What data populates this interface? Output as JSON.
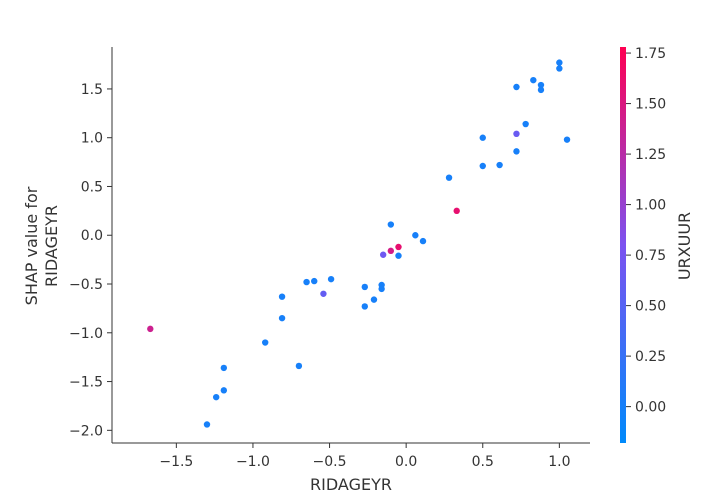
{
  "chart_data": {
    "type": "scatter",
    "xlabel": "RIDAGEYR",
    "ylabel_line1": "SHAP value for",
    "ylabel_line2": "RIDAGEYR",
    "xlim": [
      -1.92,
      1.2
    ],
    "ylim": [
      -2.13,
      1.93
    ],
    "x_ticks": [
      -1.5,
      -1.0,
      -0.5,
      0.0,
      0.5,
      1.0
    ],
    "x_tick_labels": [
      "−1.5",
      "−1.0",
      "−0.5",
      "0.0",
      "0.5",
      "1.0"
    ],
    "y_ticks": [
      -2.0,
      -1.5,
      -1.0,
      -0.5,
      0.0,
      0.5,
      1.0,
      1.5
    ],
    "y_tick_labels": [
      "−2.0",
      "−1.5",
      "−1.0",
      "−0.5",
      "0.0",
      "0.5",
      "1.0",
      "1.5"
    ],
    "grid": false,
    "colorbar": {
      "label": "URXUUR",
      "range": [
        -0.18,
        1.78
      ],
      "ticks": [
        0.0,
        0.25,
        0.5,
        0.75,
        1.0,
        1.25,
        1.5,
        1.75
      ],
      "tick_labels": [
        "0.00",
        "0.25",
        "0.50",
        "0.75",
        "1.00",
        "1.25",
        "1.50",
        "1.75"
      ],
      "colors": [
        "#008afb",
        "#7c52f0",
        "#ff0052"
      ]
    },
    "points": [
      {
        "x": 1.0,
        "y": 1.77,
        "c": 0.0
      },
      {
        "x": 1.0,
        "y": 1.71,
        "c": 0.0
      },
      {
        "x": 0.83,
        "y": 1.59,
        "c": 0.0
      },
      {
        "x": 0.88,
        "y": 1.54,
        "c": 0.0
      },
      {
        "x": 0.72,
        "y": 1.52,
        "c": 0.0
      },
      {
        "x": 0.88,
        "y": 1.49,
        "c": 0.0
      },
      {
        "x": 0.78,
        "y": 1.14,
        "c": 0.0
      },
      {
        "x": 0.72,
        "y": 1.04,
        "c": 0.65
      },
      {
        "x": 0.5,
        "y": 1.0,
        "c": 0.0
      },
      {
        "x": 1.05,
        "y": 0.98,
        "c": 0.0
      },
      {
        "x": 0.72,
        "y": 0.86,
        "c": 0.0
      },
      {
        "x": 0.61,
        "y": 0.72,
        "c": 0.0
      },
      {
        "x": 0.5,
        "y": 0.71,
        "c": 0.0
      },
      {
        "x": 0.28,
        "y": 0.59,
        "c": 0.0
      },
      {
        "x": 0.33,
        "y": 0.25,
        "c": 1.6
      },
      {
        "x": -0.1,
        "y": 0.11,
        "c": 0.0
      },
      {
        "x": 0.06,
        "y": 0.0,
        "c": 0.0
      },
      {
        "x": 0.11,
        "y": -0.06,
        "c": 0.0
      },
      {
        "x": -0.05,
        "y": -0.12,
        "c": 1.6
      },
      {
        "x": -0.1,
        "y": -0.16,
        "c": 1.45
      },
      {
        "x": -0.15,
        "y": -0.2,
        "c": 0.7
      },
      {
        "x": -0.05,
        "y": -0.21,
        "c": 0.0
      },
      {
        "x": -0.49,
        "y": -0.45,
        "c": 0.0
      },
      {
        "x": -0.6,
        "y": -0.47,
        "c": 0.0
      },
      {
        "x": -0.65,
        "y": -0.48,
        "c": 0.0
      },
      {
        "x": -0.16,
        "y": -0.51,
        "c": 0.0
      },
      {
        "x": -0.27,
        "y": -0.53,
        "c": 0.0
      },
      {
        "x": -0.16,
        "y": -0.55,
        "c": 0.0
      },
      {
        "x": -0.54,
        "y": -0.6,
        "c": 0.6
      },
      {
        "x": -0.81,
        "y": -0.63,
        "c": 0.0
      },
      {
        "x": -0.21,
        "y": -0.66,
        "c": 0.0
      },
      {
        "x": -0.27,
        "y": -0.73,
        "c": 0.0
      },
      {
        "x": -0.81,
        "y": -0.85,
        "c": 0.0
      },
      {
        "x": -1.67,
        "y": -0.96,
        "c": 1.4
      },
      {
        "x": -0.92,
        "y": -1.1,
        "c": 0.0
      },
      {
        "x": -0.7,
        "y": -1.34,
        "c": 0.0
      },
      {
        "x": -1.19,
        "y": -1.36,
        "c": 0.0
      },
      {
        "x": -1.19,
        "y": -1.59,
        "c": 0.0
      },
      {
        "x": -1.24,
        "y": -1.66,
        "c": 0.0
      },
      {
        "x": -1.3,
        "y": -1.94,
        "c": 0.0
      }
    ]
  }
}
